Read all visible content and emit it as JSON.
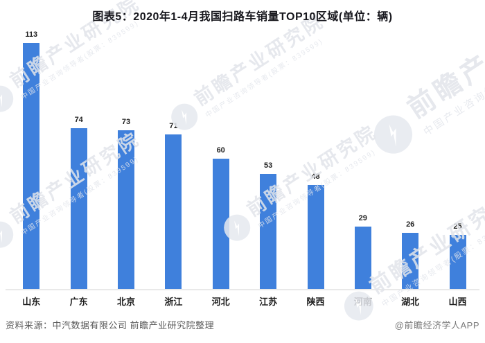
{
  "page": {
    "background": "#ffffff"
  },
  "header": {
    "title": "图表5：2020年1-4月我国扫路车销量TOP10区域(单位：辆)"
  },
  "chart_data": {
    "type": "bar",
    "title": "图表5：2020年1-4月我国扫路车销量TOP10区域(单位：辆)",
    "unit": "辆",
    "categories": [
      "山东",
      "广东",
      "北京",
      "浙江",
      "河北",
      "江苏",
      "陕西",
      "河南",
      "湖北",
      "山西"
    ],
    "values": [
      113,
      74,
      73,
      71,
      60,
      53,
      48,
      29,
      26,
      25
    ],
    "bar_color": "#3F80DC",
    "value_label_color": "#1f1f1f",
    "axis_line_color": "#e9e9e9",
    "ylim": [
      0,
      120
    ],
    "grid": false,
    "data_labels": true,
    "legend": "none",
    "xlabel": "",
    "ylabel": ""
  },
  "footer": {
    "source": "资料来源：中汽数据有限公司 前瞻产业研究院整理",
    "credit": "@前瞻经济学人APP"
  },
  "watermark": {
    "brand": "前瞻产业研究院",
    "tagline": "中国产业咨询领导者(股票：839599)"
  }
}
